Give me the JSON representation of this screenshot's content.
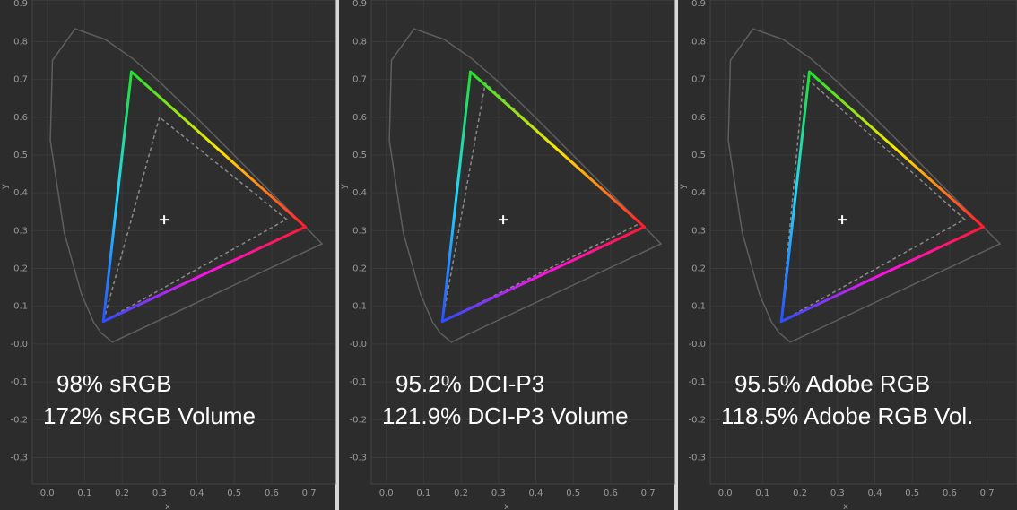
{
  "chart_data": [
    {
      "type": "chromaticity",
      "xlabel": "x",
      "ylabel": "y",
      "xlim": [
        -0.04,
        0.78
      ],
      "ylim": [
        -0.37,
        0.91
      ],
      "xticks": [
        {
          "value": 0,
          "label": "0.0"
        },
        0.1,
        0.2,
        0.3,
        0.4,
        0.5,
        0.6,
        0.7
      ],
      "yticks": [
        -0.3,
        -0.2,
        -0.1,
        {
          "value": 0,
          "label": "-0.0"
        },
        0.1,
        0.2,
        0.3,
        0.4,
        0.5,
        0.6,
        0.7,
        0.8,
        0.9
      ],
      "series": [
        {
          "style": "solid",
          "color": "#5e5e5e",
          "x": [
            0.1741,
            0.144,
            0.1241,
            0.0913,
            0.0454,
            0.0082,
            0.0139,
            0.0743,
            0.1547,
            0.2296,
            0.3016,
            0.3731,
            0.4441,
            0.5125,
            0.5752,
            0.627,
            0.6658,
            0.6915,
            0.7347
          ],
          "y": [
            0.005,
            0.0297,
            0.0578,
            0.1327,
            0.295,
            0.5384,
            0.7502,
            0.8338,
            0.8059,
            0.7543,
            0.6923,
            0.6245,
            0.5547,
            0.4866,
            0.4242,
            0.3725,
            0.334,
            0.3083,
            0.2653
          ]
        },
        {
          "style": "dashed",
          "color": "#8a8a8a",
          "x": [
            0.64,
            0.3,
            0.15
          ],
          "y": [
            0.33,
            0.6,
            0.06
          ]
        },
        {
          "style": "gradient",
          "x": [
            0.69,
            0.225,
            0.15
          ],
          "y": [
            0.31,
            0.72,
            0.06
          ],
          "edge_colors": [
            [
              "#ff1a30",
              "#ffe800",
              "#20e030"
            ],
            [
              "#20e030",
              "#20d8ff",
              "#2a50ff"
            ],
            [
              "#2a50ff",
              "#ff10e8",
              "#ff1a30"
            ]
          ]
        }
      ],
      "white_point": {
        "x": 0.3127,
        "y": 0.329
      },
      "annotations": [
        "98% sRGB",
        "172% sRGB Volume"
      ]
    },
    {
      "type": "chromaticity",
      "xlabel": "x",
      "ylabel": "y",
      "xlim": [
        -0.04,
        0.78
      ],
      "ylim": [
        -0.37,
        0.91
      ],
      "xticks": [
        {
          "value": 0,
          "label": "0.0"
        },
        0.1,
        0.2,
        0.3,
        0.4,
        0.5,
        0.6,
        0.7
      ],
      "yticks": [
        -0.3,
        -0.2,
        -0.1,
        {
          "value": 0,
          "label": "-0.0"
        },
        0.1,
        0.2,
        0.3,
        0.4,
        0.5,
        0.6,
        0.7,
        0.8,
        0.9
      ],
      "series": [
        {
          "style": "solid",
          "color": "#5e5e5e",
          "x": [
            0.1741,
            0.144,
            0.1241,
            0.0913,
            0.0454,
            0.0082,
            0.0139,
            0.0743,
            0.1547,
            0.2296,
            0.3016,
            0.3731,
            0.4441,
            0.5125,
            0.5752,
            0.627,
            0.6658,
            0.6915,
            0.7347
          ],
          "y": [
            0.005,
            0.0297,
            0.0578,
            0.1327,
            0.295,
            0.5384,
            0.7502,
            0.8338,
            0.8059,
            0.7543,
            0.6923,
            0.6245,
            0.5547,
            0.4866,
            0.4242,
            0.3725,
            0.334,
            0.3083,
            0.2653
          ]
        },
        {
          "style": "dashed",
          "color": "#8a8a8a",
          "x": [
            0.68,
            0.265,
            0.15
          ],
          "y": [
            0.32,
            0.69,
            0.06
          ]
        },
        {
          "style": "gradient",
          "x": [
            0.69,
            0.225,
            0.15
          ],
          "y": [
            0.31,
            0.72,
            0.06
          ],
          "edge_colors": [
            [
              "#ff1a30",
              "#ffe800",
              "#20e030"
            ],
            [
              "#20e030",
              "#20d8ff",
              "#2a50ff"
            ],
            [
              "#2a50ff",
              "#ff10e8",
              "#ff1a30"
            ]
          ]
        }
      ],
      "white_point": {
        "x": 0.3127,
        "y": 0.329
      },
      "annotations": [
        "95.2% DCI-P3",
        "121.9% DCI-P3 Volume"
      ]
    },
    {
      "type": "chromaticity",
      "xlabel": "x",
      "ylabel": "y",
      "xlim": [
        -0.04,
        0.78
      ],
      "ylim": [
        -0.37,
        0.91
      ],
      "xticks": [
        {
          "value": 0,
          "label": "0.0"
        },
        0.1,
        0.2,
        0.3,
        0.4,
        0.5,
        0.6,
        0.7
      ],
      "yticks": [
        -0.3,
        -0.2,
        -0.1,
        {
          "value": 0,
          "label": "-0.0"
        },
        0.1,
        0.2,
        0.3,
        0.4,
        0.5,
        0.6,
        0.7,
        0.8,
        0.9
      ],
      "series": [
        {
          "style": "solid",
          "color": "#5e5e5e",
          "x": [
            0.1741,
            0.144,
            0.1241,
            0.0913,
            0.0454,
            0.0082,
            0.0139,
            0.0743,
            0.1547,
            0.2296,
            0.3016,
            0.3731,
            0.4441,
            0.5125,
            0.5752,
            0.627,
            0.6658,
            0.6915,
            0.7347
          ],
          "y": [
            0.005,
            0.0297,
            0.0578,
            0.1327,
            0.295,
            0.5384,
            0.7502,
            0.8338,
            0.8059,
            0.7543,
            0.6923,
            0.6245,
            0.5547,
            0.4866,
            0.4242,
            0.3725,
            0.334,
            0.3083,
            0.2653
          ]
        },
        {
          "style": "dashed",
          "color": "#8a8a8a",
          "x": [
            0.64,
            0.21,
            0.15
          ],
          "y": [
            0.33,
            0.71,
            0.06
          ]
        },
        {
          "style": "gradient",
          "x": [
            0.69,
            0.225,
            0.15
          ],
          "y": [
            0.31,
            0.72,
            0.06
          ],
          "edge_colors": [
            [
              "#ff1a30",
              "#ffe800",
              "#20e030"
            ],
            [
              "#20e030",
              "#20d8ff",
              "#2a50ff"
            ],
            [
              "#2a50ff",
              "#ff10e8",
              "#ff1a30"
            ]
          ]
        }
      ],
      "white_point": {
        "x": 0.3127,
        "y": 0.329
      },
      "annotations": [
        "95.5% Adobe RGB",
        "118.5% Adobe RGB Vol."
      ]
    }
  ]
}
